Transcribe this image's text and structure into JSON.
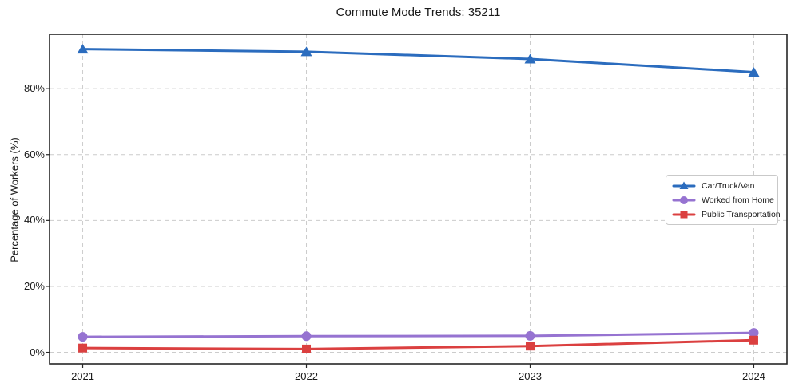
{
  "figure": {
    "title": "Commute Mode Trends: 35211",
    "ylabel": "Percentage of Workers (%)"
  },
  "chart_data": {
    "type": "line",
    "title": "Commute Mode Trends: 35211",
    "xlabel": "",
    "ylabel": "Percentage of Workers (%)",
    "x": [
      2021,
      2022,
      2023,
      2024
    ],
    "x_tick_labels": [
      "2021",
      "2022",
      "2023",
      "2024"
    ],
    "y_ticks": [
      0,
      20,
      40,
      60,
      80
    ],
    "y_tick_labels": [
      "0%",
      "20%",
      "40%",
      "60%",
      "80%"
    ],
    "ylim": [
      -3.5,
      96.5
    ],
    "grid": true,
    "grid_style": "dashed",
    "legend_position": "center right",
    "series": [
      {
        "name": "Car/Truck/Van",
        "color": "#2b6cbe",
        "marker": "triangle",
        "values": [
          92.0,
          91.2,
          89.0,
          85.0
        ]
      },
      {
        "name": "Worked from Home",
        "color": "#9673d1",
        "marker": "circle",
        "values": [
          4.7,
          4.9,
          5.0,
          5.9
        ]
      },
      {
        "name": "Public Transportation",
        "color": "#db4040",
        "marker": "square",
        "values": [
          1.3,
          1.0,
          1.9,
          3.7
        ]
      }
    ],
    "colors": {
      "grid": "#cccccc",
      "spine": "#262626",
      "text": "#1a1a1a",
      "background": "#ffffff"
    }
  }
}
